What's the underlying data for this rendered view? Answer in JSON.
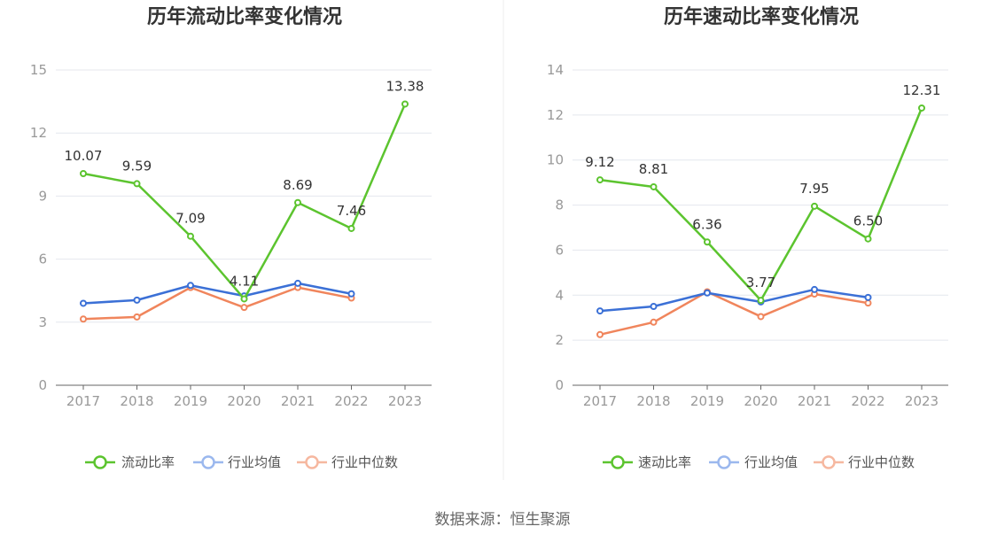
{
  "source": "数据来源：恒生聚源",
  "colors": {
    "primary": "#5cc42f",
    "avg": "#3b70d6",
    "median": "#f0855c",
    "avg_legend": "#9bb8ee",
    "median_legend": "#f6b8a0",
    "grid": "#e4e7ee",
    "axis": "#666666"
  },
  "chart_data": [
    {
      "type": "line",
      "title": "历年流动比率变化情况",
      "categories": [
        "2017",
        "2018",
        "2019",
        "2020",
        "2021",
        "2022",
        "2023"
      ],
      "ylim": [
        0,
        15
      ],
      "yticks": [
        0,
        3,
        6,
        9,
        12,
        15
      ],
      "grid": true,
      "legend_position": "bottom",
      "series": [
        {
          "name": "流动比率",
          "values": [
            10.07,
            9.59,
            7.09,
            4.11,
            8.69,
            7.46,
            13.38
          ],
          "labels": [
            "10.07",
            "9.59",
            "7.09",
            "4.11",
            "8.69",
            "7.46",
            "13.38"
          ]
        },
        {
          "name": "行业均值",
          "values": [
            3.9,
            4.05,
            4.75,
            4.25,
            4.85,
            4.35,
            null
          ]
        },
        {
          "name": "行业中位数",
          "values": [
            3.15,
            3.25,
            4.65,
            3.7,
            4.65,
            4.15,
            null
          ]
        }
      ]
    },
    {
      "type": "line",
      "title": "历年速动比率变化情况",
      "categories": [
        "2017",
        "2018",
        "2019",
        "2020",
        "2021",
        "2022",
        "2023"
      ],
      "ylim": [
        0,
        14
      ],
      "yticks": [
        0,
        2,
        4,
        6,
        8,
        10,
        12,
        14
      ],
      "grid": true,
      "legend_position": "bottom",
      "series": [
        {
          "name": "速动比率",
          "values": [
            9.12,
            8.81,
            6.36,
            3.77,
            7.95,
            6.5,
            12.31
          ],
          "labels": [
            "9.12",
            "8.81",
            "6.36",
            "3.77",
            "7.95",
            "6.50",
            "12.31"
          ]
        },
        {
          "name": "行业均值",
          "values": [
            3.3,
            3.5,
            4.1,
            3.7,
            4.25,
            3.9,
            null
          ]
        },
        {
          "name": "行业中位数",
          "values": [
            2.25,
            2.8,
            4.15,
            3.05,
            4.05,
            3.65,
            null
          ]
        }
      ]
    }
  ]
}
